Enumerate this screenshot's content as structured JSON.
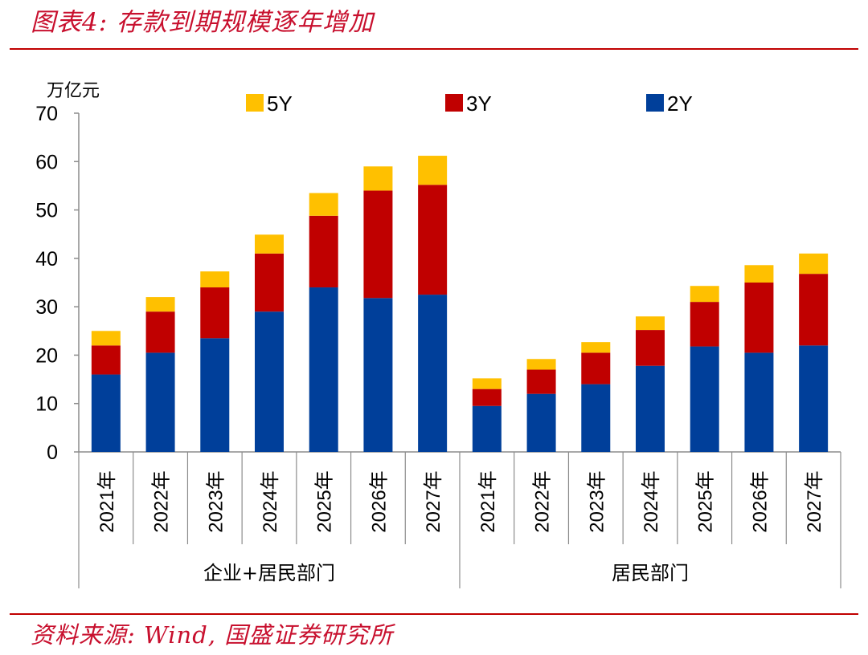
{
  "header": {
    "title": "图表4:  存款到期规模逐年增加"
  },
  "footer": {
    "source": "资料来源:  Wind,  国盛证券研究所"
  },
  "colors": {
    "accent": "#c8102e",
    "rule": "#c00000",
    "series_2y": "#003f9a",
    "series_3y": "#c00000",
    "series_5y": "#ffc000",
    "axis": "#8c8c8c",
    "text": "#000000"
  },
  "chart_data": {
    "type": "bar",
    "stacked": true,
    "unit_label": "万亿元",
    "ylim": [
      0,
      70
    ],
    "yticks": [
      0,
      10,
      20,
      30,
      40,
      50,
      60,
      70
    ],
    "grid": false,
    "legend_position": "top",
    "legend": [
      "5Y",
      "3Y",
      "2Y"
    ],
    "groups": [
      {
        "label": "企业+居民部门",
        "categories": [
          "2021年",
          "2022年",
          "2023年",
          "2024年",
          "2025年",
          "2026年",
          "2027年"
        ]
      },
      {
        "label": "居民部门",
        "categories": [
          "2021年",
          "2022年",
          "2023年",
          "2024年",
          "2025年",
          "2026年",
          "2027年"
        ]
      }
    ],
    "categories": [
      "2021年",
      "2022年",
      "2023年",
      "2024年",
      "2025年",
      "2026年",
      "2027年",
      "2021年",
      "2022年",
      "2023年",
      "2024年",
      "2025年",
      "2026年",
      "2027年"
    ],
    "series": [
      {
        "name": "2Y",
        "values": [
          16.0,
          20.5,
          23.5,
          29.0,
          34.0,
          31.8,
          32.5,
          9.5,
          12.0,
          14.0,
          17.8,
          21.8,
          20.5,
          22.0
        ]
      },
      {
        "name": "3Y",
        "values": [
          6.0,
          8.5,
          10.5,
          12.0,
          14.8,
          22.2,
          22.7,
          3.5,
          5.0,
          6.5,
          7.4,
          9.2,
          14.5,
          14.8
        ]
      },
      {
        "name": "5Y",
        "values": [
          3.0,
          3.0,
          3.3,
          3.9,
          4.7,
          5.0,
          6.0,
          2.2,
          2.2,
          2.2,
          2.8,
          3.3,
          3.6,
          4.2
        ]
      }
    ]
  }
}
